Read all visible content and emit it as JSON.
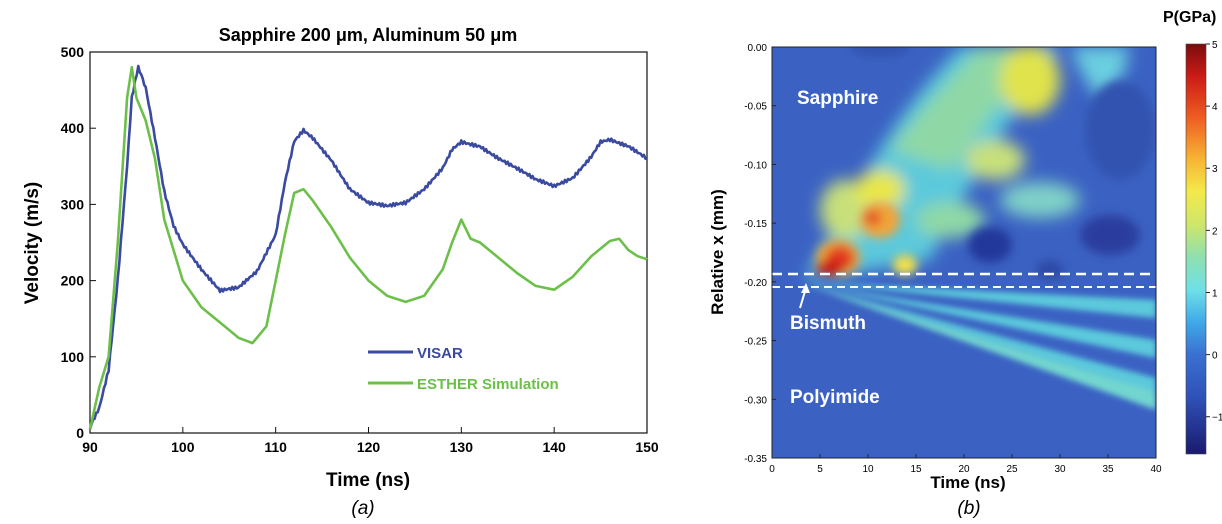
{
  "captions": {
    "a": "(a)",
    "b": "(b)"
  },
  "chart_data": [
    {
      "type": "line",
      "title": "Sapphire 200 μm, Aluminum 50 μm",
      "xlabel": "Time (ns)",
      "ylabel": "Velocity (m/s)",
      "xlim": [
        90,
        150
      ],
      "ylim": [
        0,
        500
      ],
      "xticks": [
        90,
        100,
        110,
        120,
        130,
        140,
        150
      ],
      "yticks": [
        0,
        100,
        200,
        300,
        400,
        500
      ],
      "grid": false,
      "legend_position": "bottom-right",
      "series": [
        {
          "name": "VISAR",
          "color": "#3a4aa0",
          "x": [
            90,
            91,
            92,
            93,
            94,
            94.5,
            95.2,
            96,
            97,
            98,
            99,
            100,
            102,
            104,
            106,
            108,
            110,
            111,
            112,
            113,
            114,
            116,
            118,
            120,
            122,
            124,
            126,
            128,
            129,
            130,
            132,
            134,
            136,
            138,
            140,
            142,
            144,
            145,
            146,
            148,
            150
          ],
          "y": [
            5,
            30,
            80,
            200,
            350,
            440,
            478,
            455,
            390,
            320,
            275,
            250,
            215,
            185,
            188,
            210,
            260,
            330,
            385,
            400,
            390,
            360,
            320,
            300,
            295,
            300,
            320,
            350,
            375,
            385,
            378,
            360,
            345,
            330,
            322,
            335,
            365,
            385,
            388,
            378,
            360
          ]
        },
        {
          "name": "ESTHER Simulation",
          "color": "#6cc04a",
          "x": [
            90,
            91,
            92,
            93,
            94,
            94.5,
            95,
            96,
            97,
            98,
            100,
            102,
            104,
            106,
            107.5,
            109,
            110,
            111,
            112,
            113,
            114,
            116,
            118,
            120,
            122,
            124,
            126,
            128,
            129,
            130,
            131,
            132,
            134,
            136,
            138,
            140,
            142,
            144,
            146,
            147,
            148,
            149,
            150
          ],
          "y": [
            5,
            60,
            100,
            250,
            440,
            480,
            440,
            410,
            360,
            280,
            200,
            165,
            145,
            125,
            118,
            140,
            200,
            260,
            315,
            320,
            305,
            270,
            230,
            200,
            180,
            172,
            180,
            215,
            250,
            280,
            255,
            250,
            230,
            210,
            193,
            188,
            205,
            232,
            252,
            255,
            240,
            232,
            228
          ]
        }
      ]
    },
    {
      "type": "heatmap",
      "title": "",
      "xlabel": "Time (ns)",
      "ylabel": "Relative x (mm)",
      "xlim": [
        0,
        40
      ],
      "ylim": [
        -0.35,
        0.0
      ],
      "xticks": [
        0,
        5,
        10,
        15,
        20,
        25,
        30,
        35,
        40
      ],
      "yticks": [
        "0.00",
        "-0.05",
        "-0.10",
        "-0.15",
        "-0.20",
        "-0.25",
        "-0.30",
        "-0.35"
      ],
      "colorbar": {
        "label": "P(GPa)",
        "range": [
          -1.6,
          5
        ],
        "ticks": [
          "5",
          "4",
          "3",
          "2",
          "1",
          "0",
          "−1"
        ],
        "tick_values": [
          5,
          4,
          3,
          2,
          1,
          0,
          -1
        ]
      },
      "region_labels": [
        "Sapphire",
        "Bismuth",
        "Polyimide"
      ],
      "interfaces_mm": [
        -0.201,
        -0.211
      ]
    }
  ]
}
